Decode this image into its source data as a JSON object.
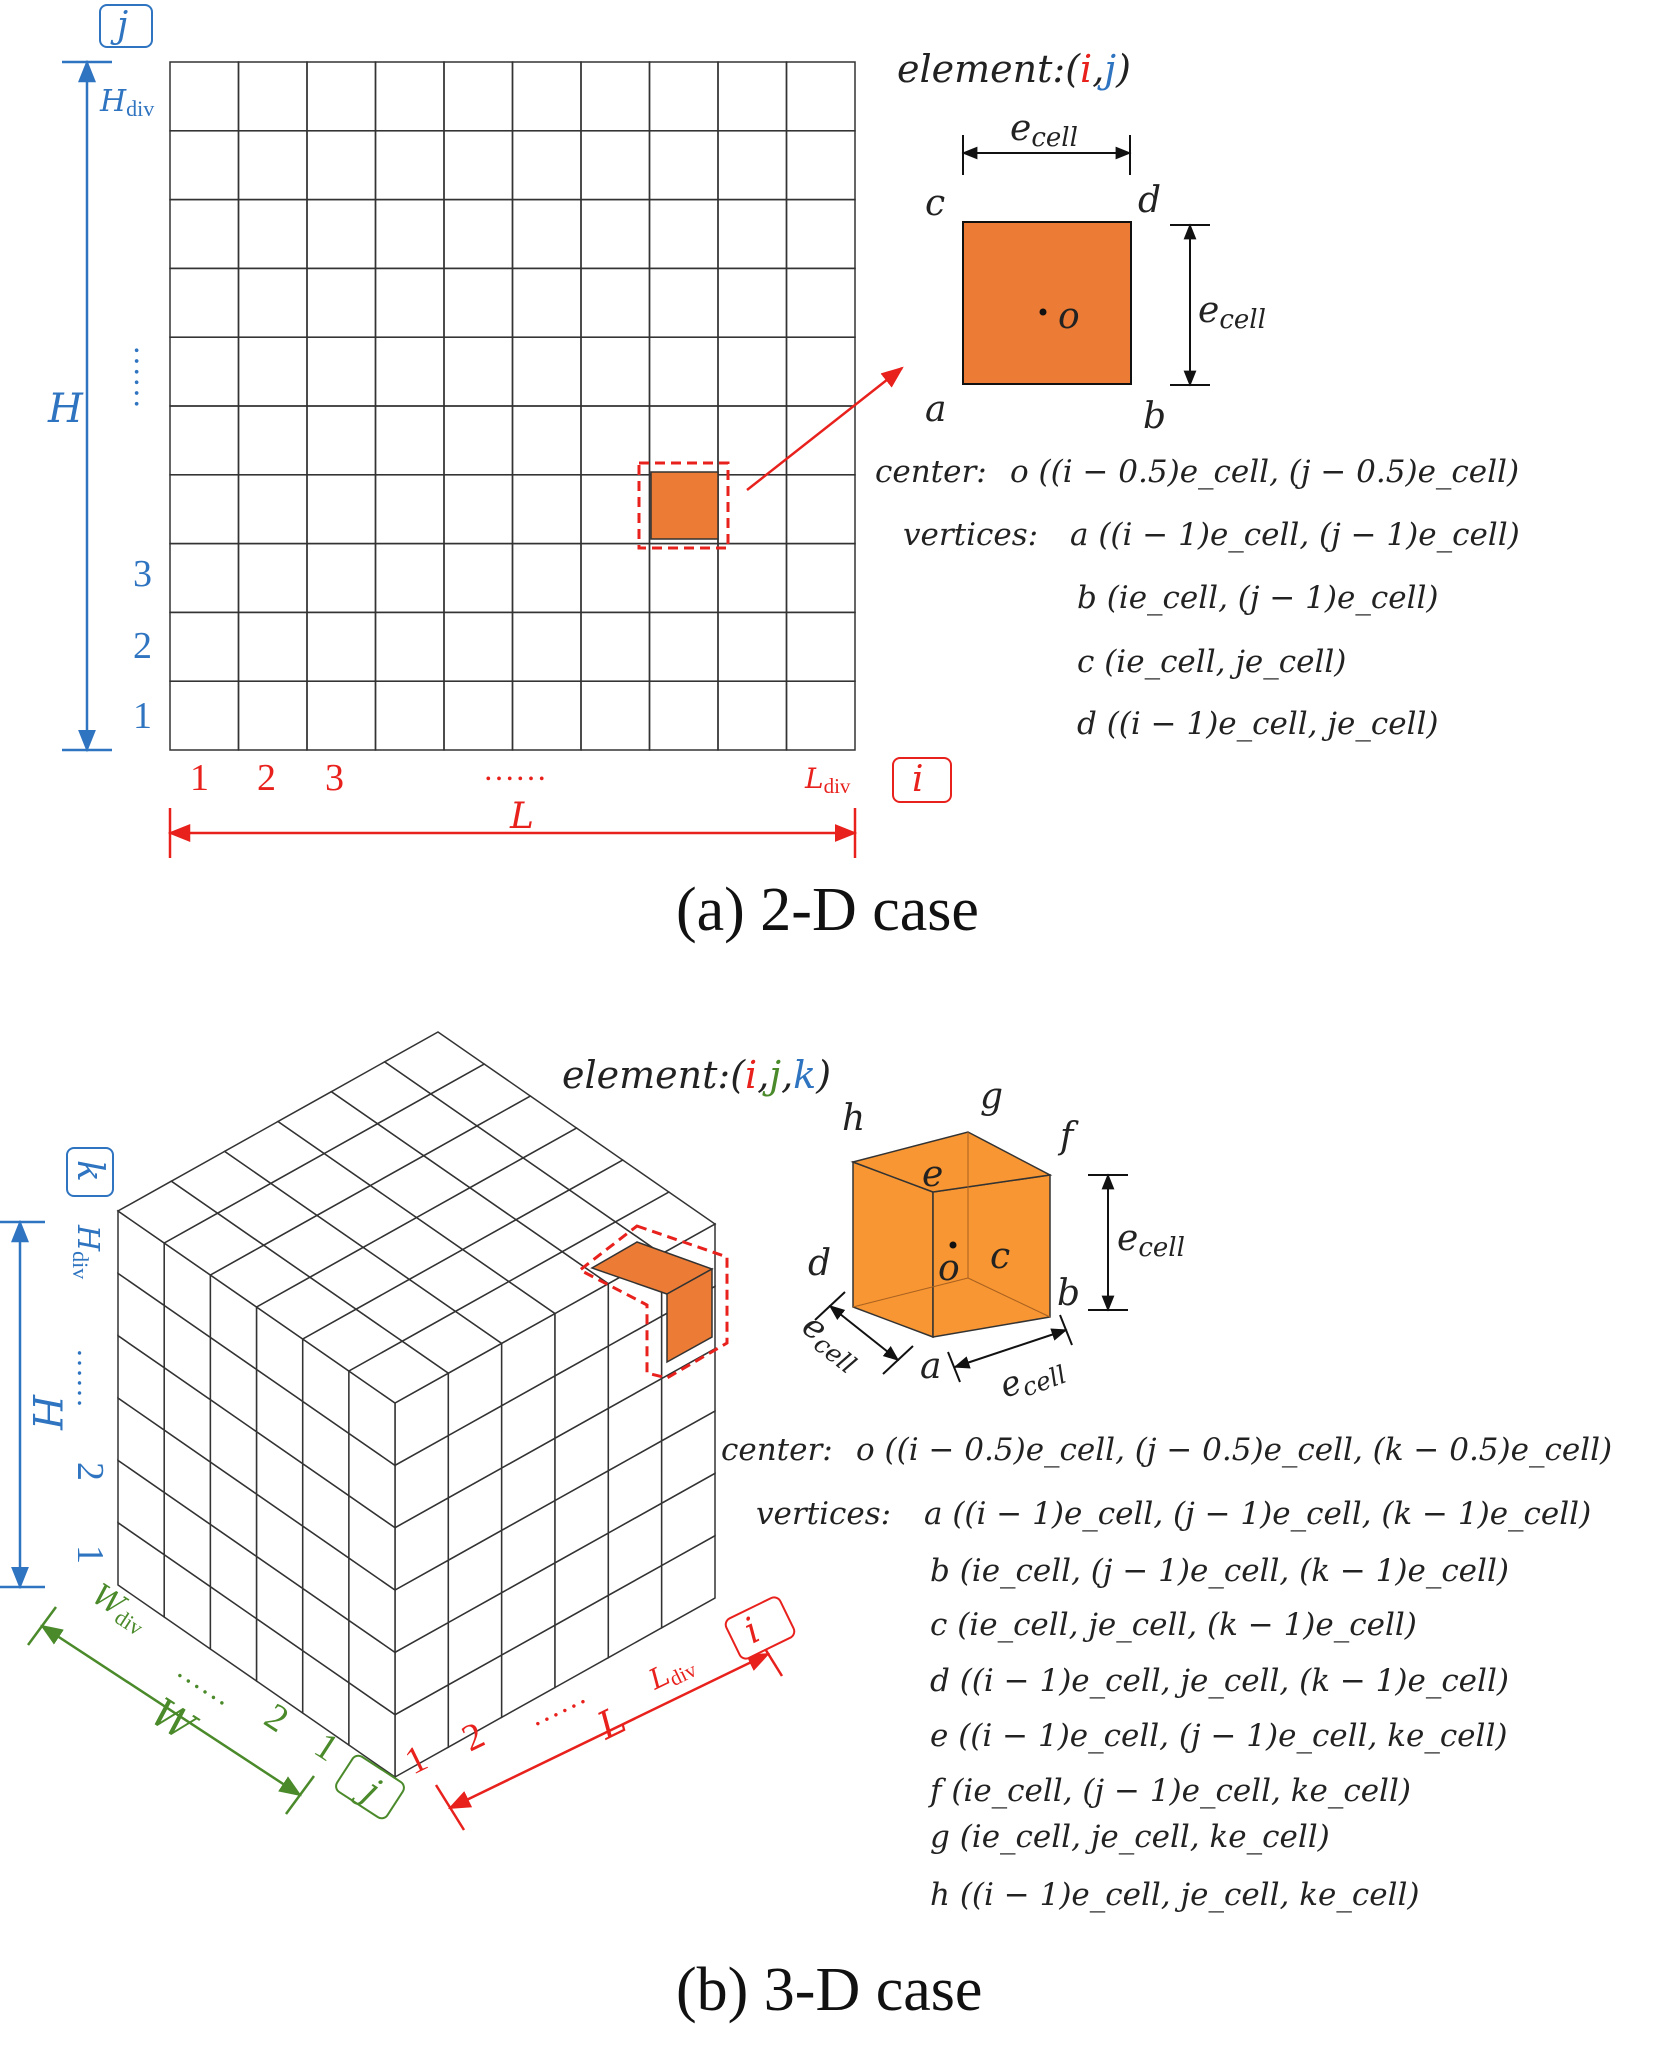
{
  "colors": {
    "red": "#e8211d",
    "blue": "#2f74c0",
    "green": "#4a8a2a",
    "orange": "#ec7c35",
    "orange3d": "#f79632",
    "grid": "#333333"
  },
  "a": {
    "caption": "(a) 2-D case",
    "axis_i": "i",
    "axis_j": "j",
    "H": "H",
    "L": "L",
    "H_div_main": "H",
    "H_div_sub": "div",
    "L_div_main": "L",
    "L_div_sub": "div",
    "row_labels": [
      "1",
      "2",
      "3"
    ],
    "col_labels": [
      "1",
      "2",
      "3"
    ],
    "dots": "……",
    "element_prefix": "element:",
    "open": "(",
    "comma": ",",
    "close": ")",
    "cell": "cell",
    "e": "e",
    "o": "o",
    "corners": {
      "a": "a",
      "b": "b",
      "c": "c",
      "d": "d"
    },
    "center_label": "center:",
    "vertices_label": "vertices:",
    "formulas": [
      "o ((i − 0.5)e_cell, (j − 0.5)e_cell)",
      "a ((i − 1)e_cell, (j − 1)e_cell)",
      "b (ie_cell, (j − 1)e_cell)",
      "c (ie_cell, je_cell)",
      "d ((i − 1)e_cell, je_cell)"
    ]
  },
  "b": {
    "caption": "(b) 3-D case",
    "axis_i": "i",
    "axis_j": "j",
    "axis_k": "k",
    "H": "H",
    "L": "L",
    "W": "W",
    "H_div_main": "H",
    "H_div_sub": "div",
    "L_div_main": "L",
    "L_div_sub": "div",
    "W_div_main": "W",
    "W_div_sub": "div",
    "k_labels": [
      "1",
      "2"
    ],
    "i_labels": [
      "1",
      "2"
    ],
    "j_labels": [
      "1",
      "2"
    ],
    "dots": "……",
    "element_prefix": "element:",
    "corners": {
      "a": "a",
      "b": "b",
      "c": "c",
      "d": "d",
      "e": "e",
      "f": "f",
      "g": "g",
      "h": "h"
    },
    "o": "o",
    "center_label": "center:",
    "vertices_label": "vertices:",
    "formulas": [
      "o ((i − 0.5)e_cell, (j − 0.5)e_cell, (k − 0.5)e_cell)",
      "a ((i − 1)e_cell, (j − 1)e_cell, (k − 1)e_cell)",
      "b (ie_cell, (j − 1)e_cell, (k − 1)e_cell)",
      "c (ie_cell, je_cell, (k − 1)e_cell)",
      "d ((i − 1)e_cell, je_cell, (k − 1)e_cell)",
      "e ((i − 1)e_cell, (j − 1)e_cell, ke_cell)",
      "f (ie_cell, (j − 1)e_cell, ke_cell)",
      "g (ie_cell, je_cell, ke_cell)",
      "h ((i − 1)e_cell, je_cell, ke_cell)"
    ]
  }
}
